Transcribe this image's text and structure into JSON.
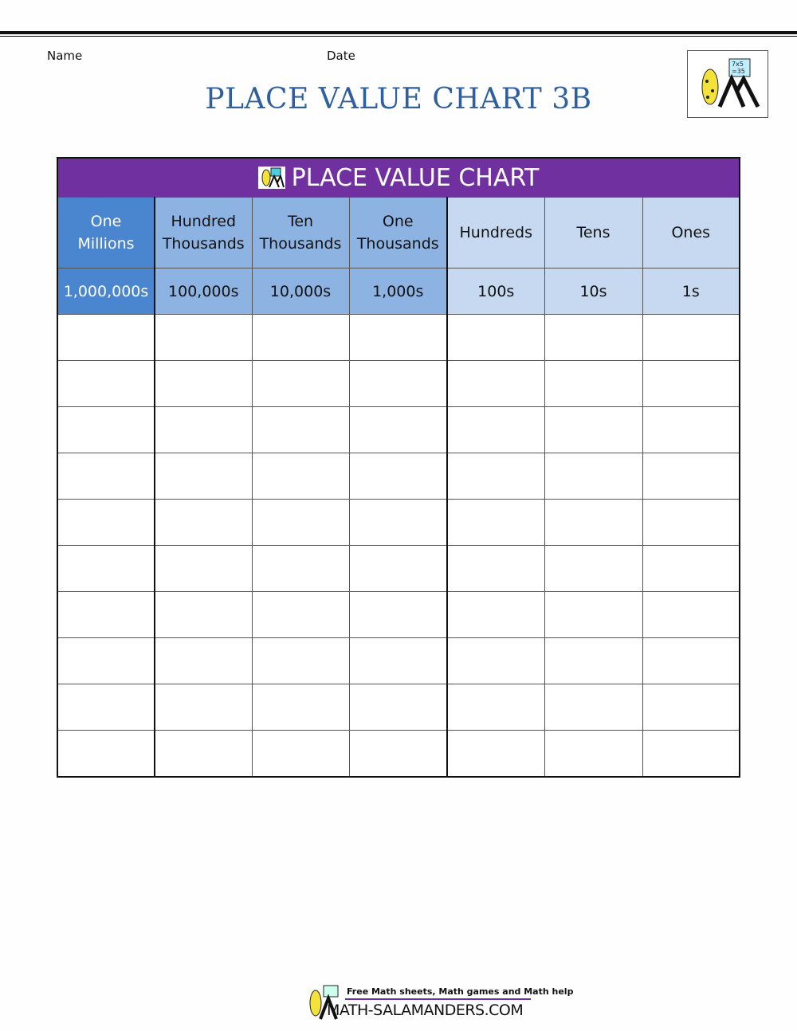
{
  "header": {
    "name_label": "Name",
    "date_label": "Date",
    "title": "PLACE VALUE CHART 3B"
  },
  "chart": {
    "title": "PLACE VALUE CHART",
    "columns": [
      {
        "line1": "One",
        "line2": "Millions",
        "value": "1,000,000s"
      },
      {
        "line1": "Hundred",
        "line2": "Thousands",
        "value": "100,000s"
      },
      {
        "line1": "Ten",
        "line2": "Thousands",
        "value": "10,000s"
      },
      {
        "line1": "One",
        "line2": "Thousands",
        "value": "1,000s"
      },
      {
        "line1": "Hundreds",
        "line2": "",
        "value": "100s"
      },
      {
        "line1": "Tens",
        "line2": "",
        "value": "10s"
      },
      {
        "line1": "Ones",
        "line2": "",
        "value": "1s"
      }
    ],
    "colors": {
      "title_bar": "#7030a0",
      "millions": "#4a86cf",
      "thousands": "#8db3e2",
      "units": "#c6d9f1"
    }
  },
  "footer": {
    "tagline": "Free Math sheets, Math games and Math help",
    "site": "MATH-SALAMANDERS.COM"
  }
}
